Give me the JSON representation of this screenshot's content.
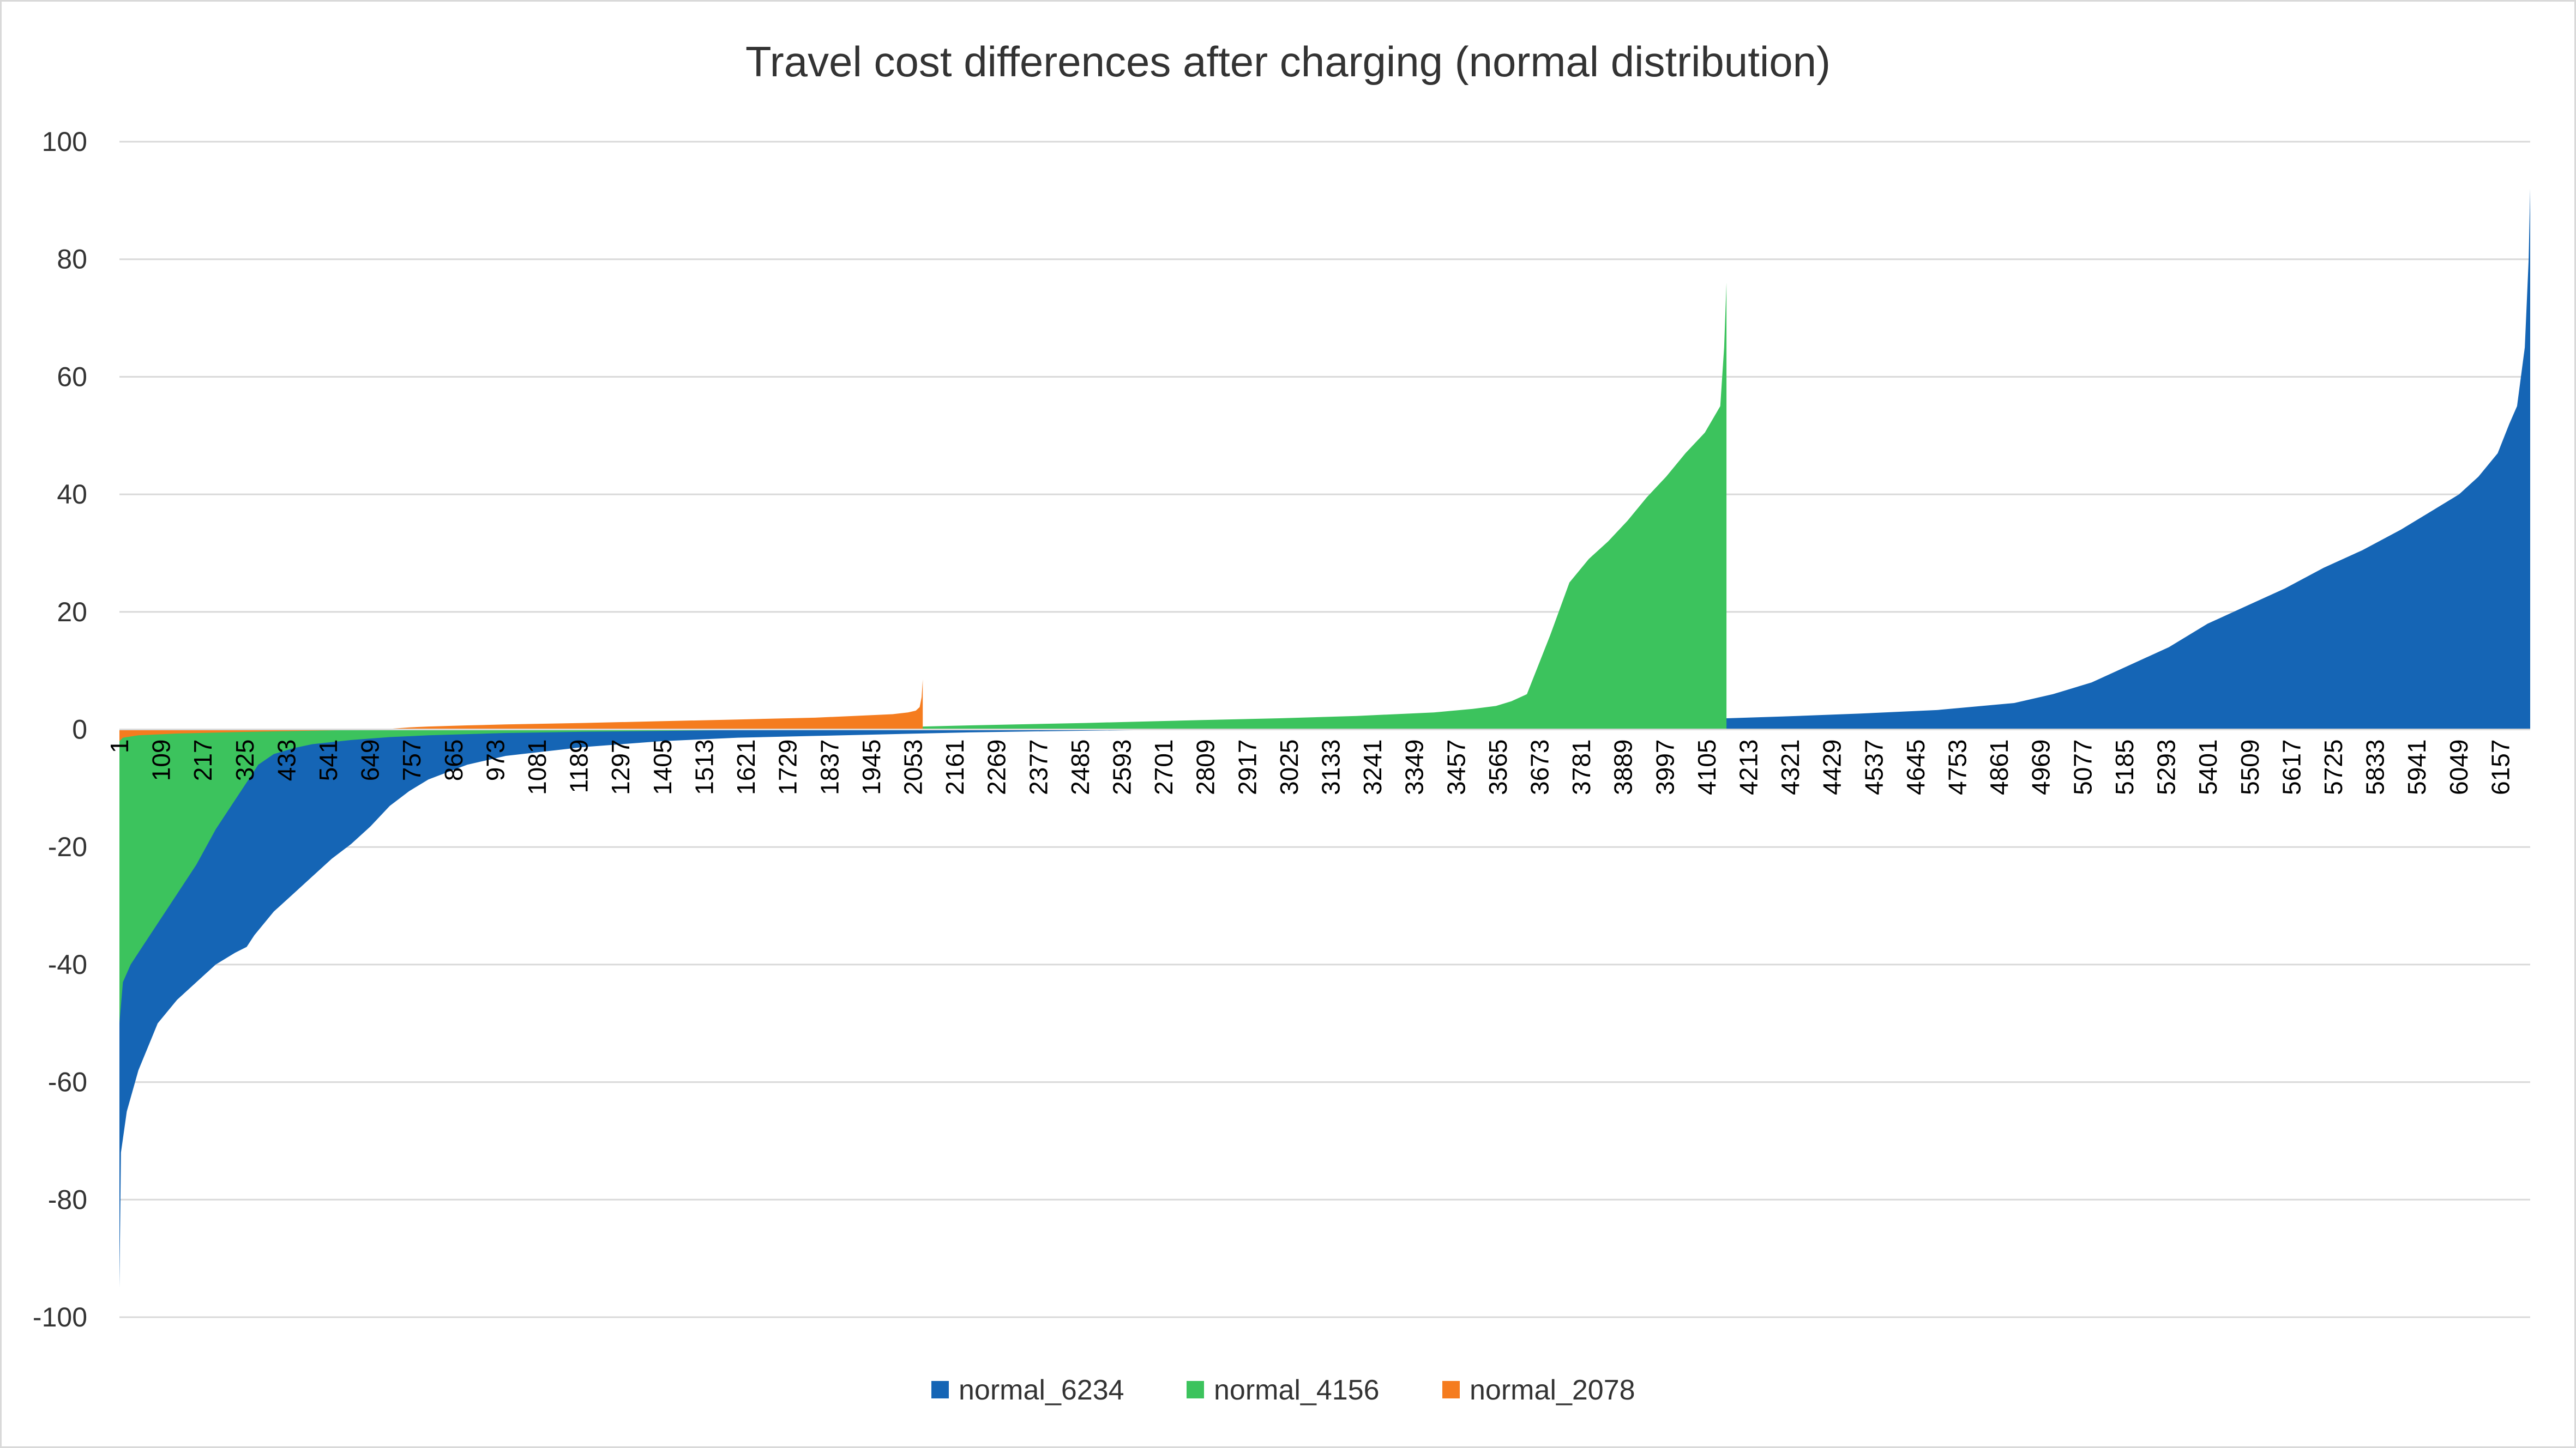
{
  "chart_data": {
    "type": "area",
    "title": "Travel cost differences after charging (normal distribution)",
    "xlabel": "",
    "ylabel": "",
    "ylim": [
      -100,
      100
    ],
    "yticks": [
      100,
      80,
      60,
      40,
      20,
      0,
      -20,
      -40,
      -60,
      -80,
      -100
    ],
    "xlim": [
      1,
      6234
    ],
    "xticks": [
      1,
      109,
      217,
      325,
      433,
      541,
      649,
      757,
      865,
      973,
      1081,
      1189,
      1297,
      1405,
      1513,
      1621,
      1729,
      1837,
      1945,
      2053,
      2161,
      2269,
      2377,
      2485,
      2593,
      2701,
      2809,
      2917,
      3025,
      3133,
      3241,
      3349,
      3457,
      3565,
      3673,
      3781,
      3889,
      3997,
      4105,
      4213,
      4321,
      4429,
      4537,
      4645,
      4753,
      4861,
      4969,
      5077,
      5185,
      5293,
      5401,
      5509,
      5617,
      5725,
      5833,
      5941,
      6049,
      6157
    ],
    "grid": true,
    "legend_position": "bottom",
    "series": [
      {
        "name": "normal_6234",
        "color": "#1565b5",
        "x": [
          1,
          5,
          20,
          50,
          100,
          150,
          200,
          250,
          300,
          330,
          350,
          400,
          450,
          500,
          550,
          600,
          650,
          700,
          750,
          800,
          900,
          1000,
          1200,
          1400,
          1600,
          1800,
          2000,
          2200,
          2400,
          2600,
          2800,
          2900,
          3000,
          3200,
          3400,
          3600,
          3800,
          4000,
          4150,
          4156,
          4300,
          4500,
          4700,
          4900,
          5000,
          5100,
          5200,
          5300,
          5400,
          5500,
          5600,
          5700,
          5800,
          5900,
          6000,
          6050,
          6100,
          6150,
          6180,
          6200,
          6220,
          6230,
          6234
        ],
        "values": [
          -95,
          -72,
          -65,
          -58,
          -50,
          -46,
          -43,
          -40,
          -38,
          -37,
          -35,
          -31,
          -28,
          -25,
          -22,
          -19.5,
          -16.5,
          -13,
          -10.5,
          -8.5,
          -6,
          -4.5,
          -3,
          -2,
          -1.4,
          -1.1,
          -0.8,
          -0.5,
          -0.3,
          -0.15,
          -0.05,
          0,
          0.1,
          0.3,
          0.5,
          0.7,
          0.9,
          1.1,
          1.3,
          1.9,
          2.2,
          2.7,
          3.3,
          4.5,
          6,
          8,
          11,
          14,
          18,
          21,
          24,
          27.5,
          30.5,
          34,
          38,
          40,
          43,
          47,
          52,
          55,
          65,
          80,
          92
        ]
      },
      {
        "name": "normal_4156",
        "color": "#3cc35d",
        "x": [
          1,
          10,
          30,
          60,
          100,
          150,
          200,
          250,
          300,
          330,
          360,
          400,
          450,
          500,
          600,
          700,
          800,
          900,
          1000,
          1200,
          1400,
          1600,
          1800,
          2000,
          2077,
          2078,
          2200,
          2500,
          2800,
          3000,
          3200,
          3400,
          3500,
          3560,
          3600,
          3640,
          3670,
          3700,
          3750,
          3800,
          3850,
          3900,
          3950,
          4000,
          4050,
          4100,
          4140,
          4150,
          4156
        ],
        "values": [
          -50,
          -43,
          -40,
          -37,
          -33,
          -28,
          -23,
          -17,
          -12,
          -9,
          -6,
          -4.2,
          -3.2,
          -2.5,
          -1.8,
          -1.3,
          -1,
          -0.8,
          -0.6,
          -0.4,
          -0.25,
          -0.1,
          0,
          0.15,
          0.3,
          0.5,
          0.7,
          1.1,
          1.6,
          1.9,
          2.3,
          2.9,
          3.5,
          4,
          4.8,
          6,
          11,
          16,
          25,
          29,
          32,
          35.5,
          39.5,
          43,
          47,
          50.5,
          55,
          65,
          76
        ]
      },
      {
        "name": "normal_2078",
        "color": "#f57c1f",
        "x": [
          1,
          10,
          50,
          150,
          300,
          500,
          650,
          700,
          750,
          800,
          900,
          1000,
          1200,
          1400,
          1600,
          1800,
          1900,
          2000,
          2040,
          2060,
          2070,
          2075,
          2078
        ],
        "values": [
          -2,
          -1.4,
          -1,
          -0.7,
          -0.45,
          -0.2,
          -0.05,
          0.1,
          0.35,
          0.5,
          0.7,
          0.85,
          1.1,
          1.4,
          1.7,
          2.0,
          2.3,
          2.6,
          2.9,
          3.2,
          3.8,
          5.5,
          8.5
        ]
      }
    ]
  }
}
